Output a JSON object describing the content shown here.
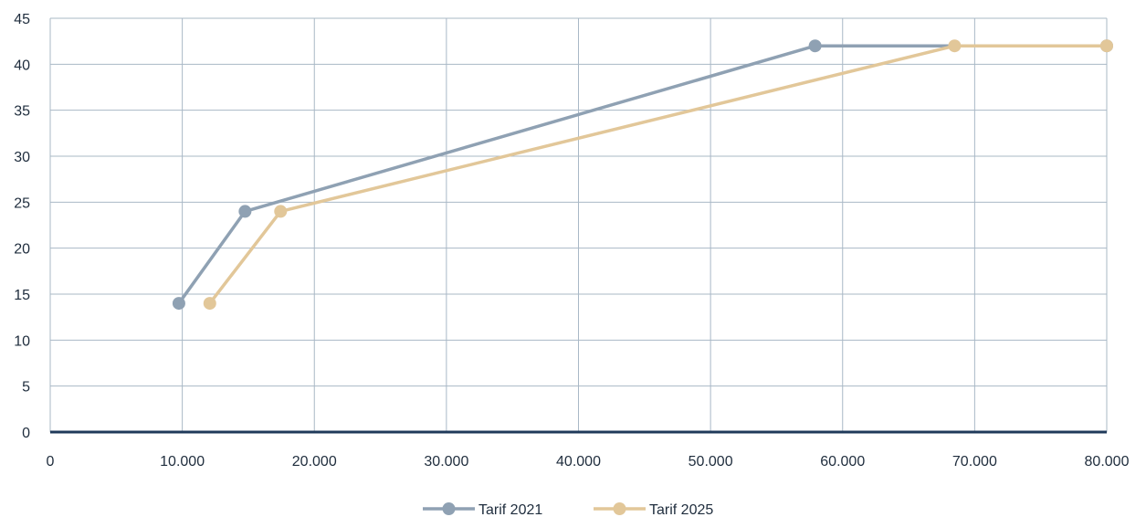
{
  "chart_data": {
    "type": "line",
    "title": "",
    "xlabel": "",
    "ylabel": "",
    "xlim": [
      0,
      80000
    ],
    "ylim": [
      0,
      45
    ],
    "x_ticks": [
      0,
      10000,
      20000,
      30000,
      40000,
      50000,
      60000,
      70000,
      80000
    ],
    "x_tick_labels": [
      "0",
      "10.000",
      "20.000",
      "30.000",
      "40.000",
      "50.000",
      "60.000",
      "70.000",
      "80.000"
    ],
    "y_ticks": [
      0,
      5,
      10,
      15,
      20,
      25,
      30,
      35,
      40,
      45
    ],
    "y_tick_labels": [
      "0",
      "5",
      "10",
      "15",
      "20",
      "25",
      "30",
      "35",
      "40",
      "45"
    ],
    "grid": true,
    "legend_position": "bottom",
    "series": [
      {
        "name": "Tarif 2021",
        "color": "#8fa1b3",
        "points": [
          [
            9744,
            14
          ],
          [
            14753,
            24
          ],
          [
            57918,
            42
          ],
          [
            80000,
            42
          ]
        ]
      },
      {
        "name": "Tarif 2025",
        "color": "#e2c799",
        "points": [
          [
            12084,
            14
          ],
          [
            17443,
            24
          ],
          [
            68480,
            42
          ],
          [
            80000,
            42
          ]
        ]
      }
    ]
  }
}
